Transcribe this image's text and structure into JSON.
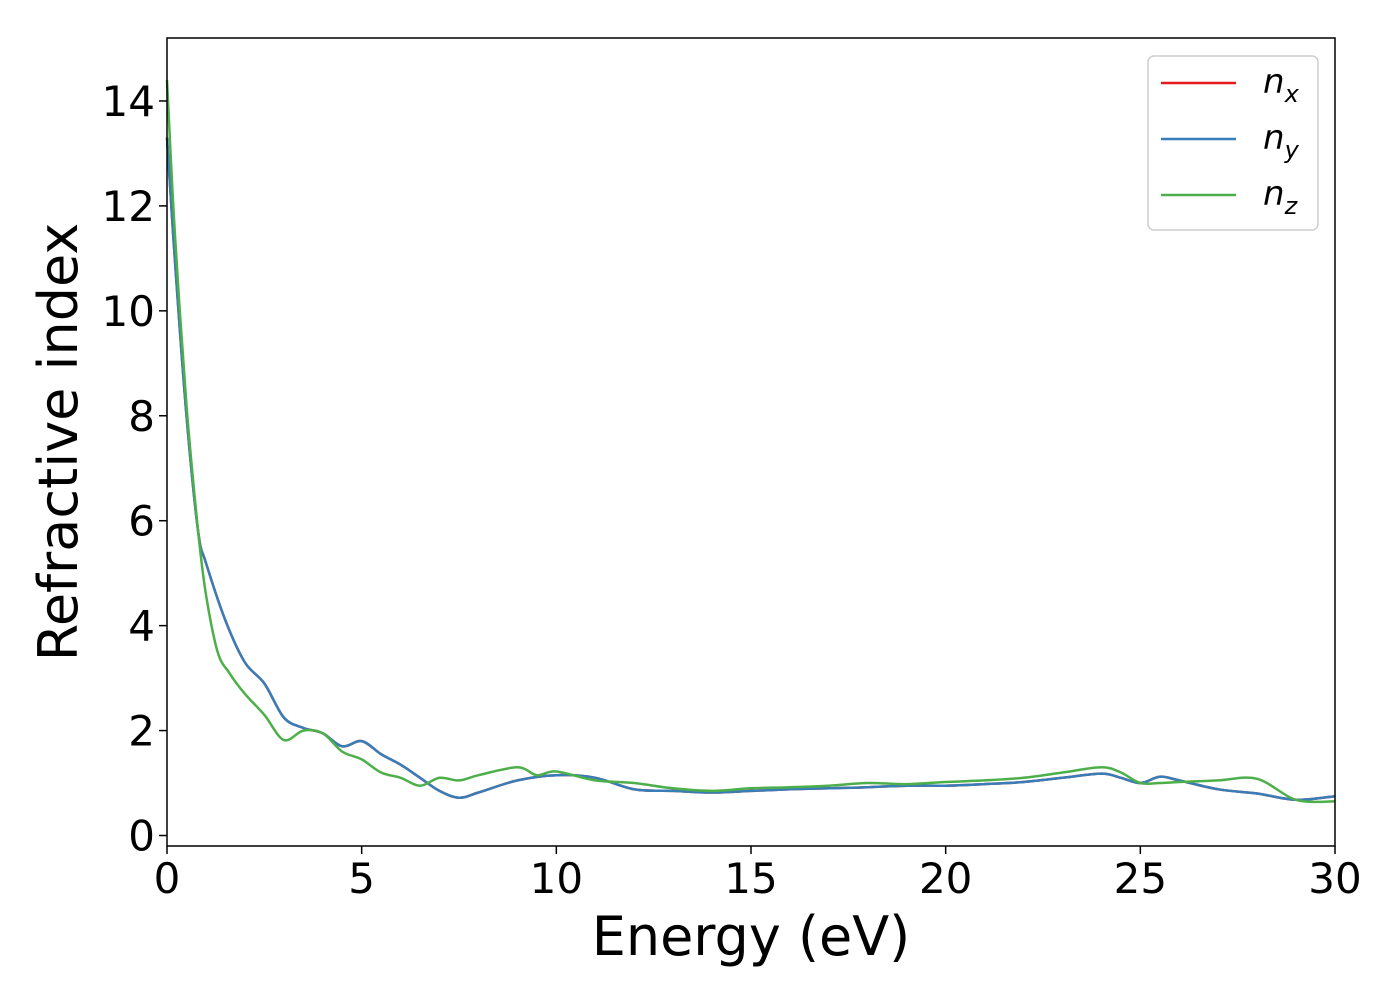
{
  "chart_data": {
    "type": "line",
    "xlabel": "Energy (eV)",
    "ylabel": "Refractive index",
    "xlim": [
      0,
      30
    ],
    "ylim": [
      -0.2,
      15.2
    ],
    "xticks": [
      0,
      5,
      10,
      15,
      20,
      25,
      30
    ],
    "yticks": [
      0,
      2,
      4,
      6,
      8,
      10,
      12,
      14
    ],
    "grid": false,
    "legend_position": "top-right",
    "series": [
      {
        "name": "n_x",
        "label_base": "n",
        "label_sub": "x",
        "color": "#e41a1c",
        "x": [
          0,
          0.2,
          0.5,
          0.8,
          1.0,
          1.5,
          2.0,
          2.5,
          3.0,
          3.5,
          4.0,
          4.5,
          5.0,
          5.5,
          6.0,
          6.5,
          7.0,
          7.5,
          8.0,
          9.0,
          10.0,
          11.0,
          12.0,
          13.0,
          14.0,
          15.0,
          16.0,
          17.0,
          18.0,
          19.0,
          20.0,
          21.0,
          22.0,
          23.0,
          24.0,
          24.5,
          25.0,
          25.5,
          26.0,
          27.0,
          28.0,
          29.0,
          30.0
        ],
        "y": [
          13.3,
          11.0,
          8.0,
          5.8,
          5.2,
          4.1,
          3.3,
          2.9,
          2.25,
          2.05,
          1.95,
          1.7,
          1.8,
          1.55,
          1.35,
          1.1,
          0.85,
          0.72,
          0.82,
          1.05,
          1.15,
          1.1,
          0.88,
          0.85,
          0.82,
          0.85,
          0.88,
          0.9,
          0.92,
          0.95,
          0.95,
          0.98,
          1.02,
          1.1,
          1.18,
          1.1,
          1.0,
          1.12,
          1.05,
          0.88,
          0.8,
          0.68,
          0.75
        ]
      },
      {
        "name": "n_y",
        "label_base": "n",
        "label_sub": "y",
        "color": "#377eb8",
        "x": [
          0,
          0.2,
          0.5,
          0.8,
          1.0,
          1.5,
          2.0,
          2.5,
          3.0,
          3.5,
          4.0,
          4.5,
          5.0,
          5.5,
          6.0,
          6.5,
          7.0,
          7.5,
          8.0,
          9.0,
          10.0,
          11.0,
          12.0,
          13.0,
          14.0,
          15.0,
          16.0,
          17.0,
          18.0,
          19.0,
          20.0,
          21.0,
          22.0,
          23.0,
          24.0,
          24.5,
          25.0,
          25.5,
          26.0,
          27.0,
          28.0,
          29.0,
          30.0
        ],
        "y": [
          13.3,
          11.0,
          8.0,
          5.8,
          5.2,
          4.1,
          3.3,
          2.9,
          2.25,
          2.05,
          1.95,
          1.7,
          1.8,
          1.55,
          1.35,
          1.1,
          0.85,
          0.72,
          0.82,
          1.05,
          1.15,
          1.1,
          0.88,
          0.85,
          0.82,
          0.85,
          0.88,
          0.9,
          0.92,
          0.95,
          0.95,
          0.98,
          1.02,
          1.1,
          1.18,
          1.1,
          1.0,
          1.12,
          1.05,
          0.88,
          0.8,
          0.68,
          0.75
        ]
      },
      {
        "name": "n_z",
        "label_base": "n",
        "label_sub": "z",
        "color": "#4daf4a",
        "x": [
          0,
          0.2,
          0.5,
          0.8,
          1.0,
          1.3,
          1.6,
          2.0,
          2.5,
          3.0,
          3.5,
          4.0,
          4.5,
          5.0,
          5.5,
          6.0,
          6.5,
          7.0,
          7.5,
          8.0,
          9.0,
          9.5,
          10.0,
          11.0,
          12.0,
          13.0,
          14.0,
          15.0,
          16.0,
          17.0,
          18.0,
          19.0,
          20.0,
          21.0,
          22.0,
          23.0,
          24.0,
          24.5,
          25.0,
          25.5,
          26.0,
          27.0,
          28.0,
          29.0,
          30.0
        ],
        "y": [
          14.4,
          11.5,
          8.2,
          5.8,
          4.6,
          3.5,
          3.1,
          2.7,
          2.3,
          1.82,
          2.0,
          1.95,
          1.6,
          1.45,
          1.2,
          1.1,
          0.95,
          1.1,
          1.05,
          1.15,
          1.3,
          1.15,
          1.22,
          1.05,
          1.0,
          0.9,
          0.85,
          0.9,
          0.92,
          0.95,
          1.0,
          0.98,
          1.02,
          1.05,
          1.1,
          1.2,
          1.3,
          1.2,
          1.0,
          1.0,
          1.02,
          1.05,
          1.08,
          0.68,
          0.65
        ]
      }
    ]
  }
}
